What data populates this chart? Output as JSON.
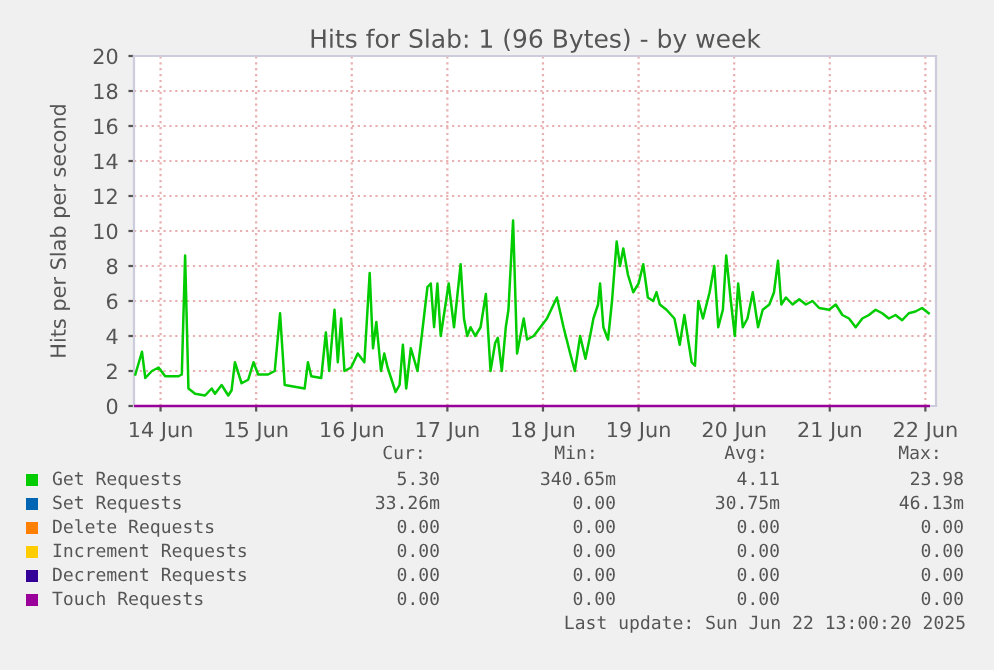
{
  "chart_data": {
    "type": "line",
    "title": "Hits for Slab: 1 (96 Bytes) - by week",
    "ylabel": "Hits per Slab per second",
    "xlim": [
      "2025-06-14T05:20",
      "2025-06-22T14:40"
    ],
    "xticks": [
      {
        "value": "2025-06-14T12:00",
        "label": "14 Jun"
      },
      {
        "value": "2025-06-15T12:00",
        "label": "15 Jun"
      },
      {
        "value": "2025-06-16T12:00",
        "label": "16 Jun"
      },
      {
        "value": "2025-06-17T12:00",
        "label": "17 Jun"
      },
      {
        "value": "2025-06-18T12:00",
        "label": "18 Jun"
      },
      {
        "value": "2025-06-19T12:00",
        "label": "19 Jun"
      },
      {
        "value": "2025-06-20T12:00",
        "label": "20 Jun"
      },
      {
        "value": "2025-06-21T12:00",
        "label": "21 Jun"
      },
      {
        "value": "2025-06-22T12:00",
        "label": "22 Jun"
      }
    ],
    "ylim": [
      0,
      20
    ],
    "yticks": [
      0,
      2,
      4,
      6,
      8,
      10,
      12,
      14,
      16,
      18,
      20
    ],
    "grid": true,
    "legend": "bottom",
    "series": [
      {
        "name": "Get Requests",
        "color": "#00cc00",
        "x": [
          "2025-06-14T05:40",
          "2025-06-14T07:20",
          "2025-06-14T08:10",
          "2025-06-14T09:50",
          "2025-06-14T11:30",
          "2025-06-14T13:10",
          "2025-06-14T16:30",
          "2025-06-14T17:20",
          "2025-06-14T18:10",
          "2025-06-14T19:00",
          "2025-06-14T20:40",
          "2025-06-14T23:10",
          "2025-06-15T00:50",
          "2025-06-15T01:40",
          "2025-06-15T03:20",
          "2025-06-15T05:00",
          "2025-06-15T05:50",
          "2025-06-15T06:40",
          "2025-06-15T08:20",
          "2025-06-15T10:00",
          "2025-06-15T11:20",
          "2025-06-15T12:30",
          "2025-06-15T15:00",
          "2025-06-15T16:40",
          "2025-06-15T18:00",
          "2025-06-15T19:10",
          "2025-06-15T21:40",
          "2025-06-16T00:10",
          "2025-06-16T01:00",
          "2025-06-16T01:50",
          "2025-06-16T04:20",
          "2025-06-16T05:30",
          "2025-06-16T06:20",
          "2025-06-16T07:40",
          "2025-06-16T08:30",
          "2025-06-16T09:20",
          "2025-06-16T10:10",
          "2025-06-16T11:50",
          "2025-06-16T13:30",
          "2025-06-16T15:10",
          "2025-06-16T16:30",
          "2025-06-16T17:20",
          "2025-06-16T18:10",
          "2025-06-16T19:20",
          "2025-06-16T20:10",
          "2025-06-16T21:00",
          "2025-06-16T23:00",
          "2025-06-17T00:00",
          "2025-06-17T00:50",
          "2025-06-17T01:40",
          "2025-06-17T02:50",
          "2025-06-17T04:30",
          "2025-06-17T05:40",
          "2025-06-17T07:00",
          "2025-06-17T07:50",
          "2025-06-17T08:40",
          "2025-06-17T09:30",
          "2025-06-17T10:20",
          "2025-06-17T12:20",
          "2025-06-17T13:40",
          "2025-06-17T15:20",
          "2025-06-17T16:10",
          "2025-06-17T17:00",
          "2025-06-17T17:50",
          "2025-06-17T19:00",
          "2025-06-17T20:20",
          "2025-06-17T21:40",
          "2025-06-17T22:50",
          "2025-06-18T00:00",
          "2025-06-18T00:40",
          "2025-06-18T01:40",
          "2025-06-18T02:40",
          "2025-06-18T03:20",
          "2025-06-18T04:30",
          "2025-06-18T05:30",
          "2025-06-18T07:10",
          "2025-06-18T08:00",
          "2025-06-18T09:40",
          "2025-06-18T11:20",
          "2025-06-18T13:00",
          "2025-06-18T15:30",
          "2025-06-18T17:10",
          "2025-06-18T18:50",
          "2025-06-18T20:00",
          "2025-06-18T21:20",
          "2025-06-18T22:40",
          "2025-06-18T23:50",
          "2025-06-19T00:40",
          "2025-06-19T01:50",
          "2025-06-19T02:20",
          "2025-06-19T03:10",
          "2025-06-19T04:20",
          "2025-06-19T05:20",
          "2025-06-19T06:30",
          "2025-06-19T07:20",
          "2025-06-19T08:10",
          "2025-06-19T09:20",
          "2025-06-19T10:40",
          "2025-06-19T12:00",
          "2025-06-19T13:10",
          "2025-06-19T14:20",
          "2025-06-19T15:40",
          "2025-06-19T16:30",
          "2025-06-19T17:20",
          "2025-06-19T19:00",
          "2025-06-19T21:00",
          "2025-06-19T22:20",
          "2025-06-19T23:30",
          "2025-06-20T00:30",
          "2025-06-20T01:20",
          "2025-06-20T02:10",
          "2025-06-20T03:00",
          "2025-06-20T04:10",
          "2025-06-20T05:50",
          "2025-06-20T07:00",
          "2025-06-20T08:00",
          "2025-06-20T09:10",
          "2025-06-20T10:00",
          "2025-06-20T11:10",
          "2025-06-20T12:10",
          "2025-06-20T13:00",
          "2025-06-20T14:10",
          "2025-06-20T15:20",
          "2025-06-20T16:40",
          "2025-06-20T18:00",
          "2025-06-20T19:10",
          "2025-06-20T20:50",
          "2025-06-20T22:00",
          "2025-06-20T23:00",
          "2025-06-20T23:50",
          "2025-06-21T01:00",
          "2025-06-21T02:40",
          "2025-06-21T04:20",
          "2025-06-21T06:00",
          "2025-06-21T07:40",
          "2025-06-21T09:20",
          "2025-06-21T11:50",
          "2025-06-21T13:30",
          "2025-06-21T15:10",
          "2025-06-21T16:50",
          "2025-06-21T18:30",
          "2025-06-21T20:10",
          "2025-06-21T21:50",
          "2025-06-21T23:30",
          "2025-06-22T01:10",
          "2025-06-22T02:50",
          "2025-06-22T04:30",
          "2025-06-22T06:10",
          "2025-06-22T07:50",
          "2025-06-22T09:30",
          "2025-06-22T11:10",
          "2025-06-22T12:50"
        ],
        "values": [
          1.8,
          3.1,
          1.6,
          2.0,
          2.2,
          1.7,
          1.7,
          1.8,
          8.6,
          1.0,
          0.7,
          0.6,
          1.0,
          0.7,
          1.2,
          0.6,
          0.9,
          2.5,
          1.3,
          1.5,
          2.5,
          1.8,
          1.8,
          2.0,
          5.3,
          1.2,
          1.1,
          1.0,
          2.5,
          1.7,
          1.6,
          4.2,
          2.0,
          5.5,
          2.5,
          5.0,
          2.0,
          2.2,
          3.0,
          2.5,
          7.6,
          3.3,
          4.8,
          2.0,
          3.0,
          2.2,
          0.8,
          1.2,
          3.5,
          1.0,
          3.3,
          2.0,
          4.2,
          6.8,
          7.0,
          4.5,
          7.0,
          4.0,
          7.0,
          4.5,
          8.1,
          5.0,
          4.0,
          4.5,
          4.0,
          4.5,
          6.4,
          2.0,
          3.6,
          3.9,
          2.0,
          4.5,
          5.5,
          10.6,
          3.0,
          5.0,
          3.8,
          4.0,
          4.5,
          5.0,
          6.2,
          4.5,
          3.0,
          2.0,
          4.0,
          2.7,
          4.0,
          5.0,
          5.8,
          7.0,
          4.5,
          3.8,
          6.0,
          9.4,
          8.0,
          9.0,
          7.5,
          6.5,
          7.0,
          8.1,
          6.2,
          6.0,
          6.5,
          5.8,
          5.5,
          5.0,
          3.5,
          5.2,
          3.7,
          2.5,
          2.3,
          6.0,
          5.0,
          6.5,
          8.0,
          4.5,
          5.5,
          8.6,
          6.0,
          4.0,
          7.0,
          4.5,
          5.0,
          6.5,
          4.5,
          5.5,
          5.8,
          6.5,
          8.3,
          5.8,
          6.2,
          5.8,
          6.1,
          5.8,
          6.0,
          5.6,
          5.5,
          5.8,
          5.2,
          5.0,
          4.5,
          5.0,
          5.2,
          5.5,
          5.3,
          5.0,
          5.2,
          4.9,
          5.3,
          5.4,
          5.6,
          5.3
        ]
      },
      {
        "name": "Set Requests",
        "color": "#0066b3"
      },
      {
        "name": "Delete Requests",
        "color": "#ff8000"
      },
      {
        "name": "Increment Requests",
        "color": "#ffcc00"
      },
      {
        "name": "Decrement Requests",
        "color": "#330099"
      },
      {
        "name": "Touch Requests",
        "color": "#990099",
        "x": [
          "2025-06-14T05:40",
          "2025-06-22T12:50"
        ],
        "values": [
          0,
          0
        ]
      }
    ],
    "annotations": [
      "Cur:",
      "Min:",
      "Avg:",
      "Max:",
      "5.30",
      "340.65m",
      "4.11",
      "23.98",
      "33.26m",
      "0.00",
      "30.75m",
      "46.13m",
      "0.00",
      "0.00",
      "0.00",
      "0.00",
      "0.00",
      "0.00",
      "0.00",
      "0.00",
      "0.00",
      "0.00",
      "0.00",
      "0.00",
      "0.00",
      "0.00",
      "0.00",
      "0.00",
      "Last update: Sun Jun 22 13:00:20 2025"
    ]
  }
}
